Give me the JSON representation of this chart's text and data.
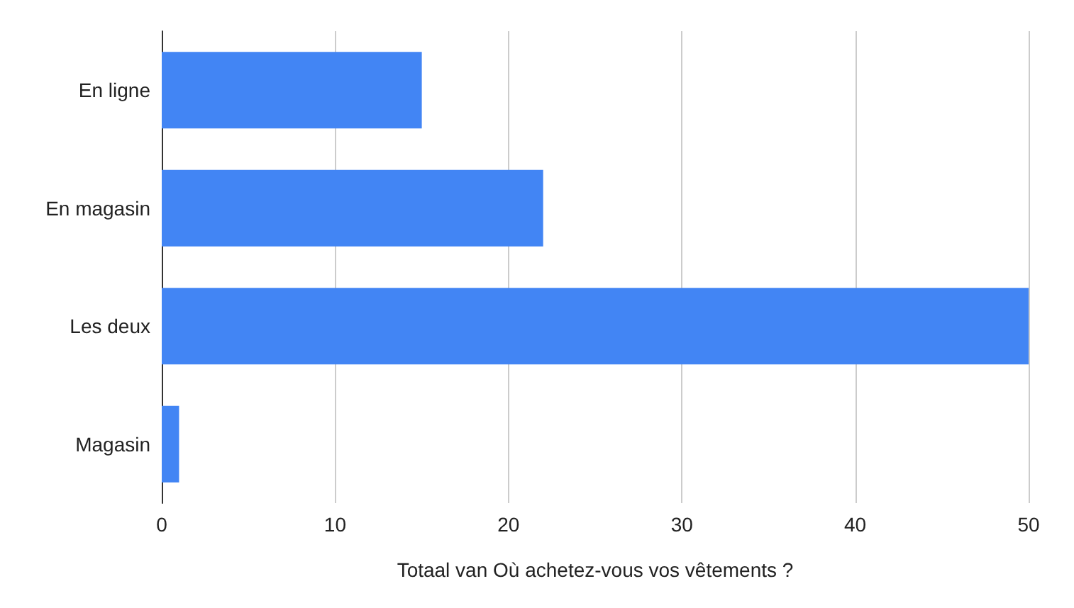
{
  "chart_data": {
    "type": "bar",
    "orientation": "horizontal",
    "xlabel": "Totaal van Où achetez-vous vos vêtements ?",
    "categories": [
      "En ligne",
      "En magasin",
      "Les deux",
      "Magasin"
    ],
    "values": [
      15,
      22,
      50,
      1
    ],
    "color": "#4285f4",
    "xlim": [
      0,
      50
    ],
    "xticks": [
      0,
      10,
      20,
      30,
      40,
      50
    ],
    "grid": "x"
  }
}
